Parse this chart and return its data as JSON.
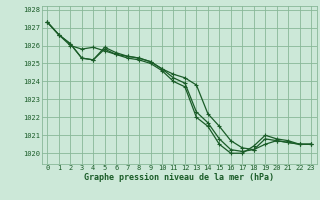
{
  "title": "Graphe pression niveau de la mer (hPa)",
  "background_color": "#cce8d8",
  "grid_color": "#88b898",
  "line_color": "#1a5c28",
  "xlim": [
    -0.5,
    23.5
  ],
  "ylim": [
    1019.4,
    1028.2
  ],
  "yticks": [
    1020,
    1021,
    1022,
    1023,
    1024,
    1025,
    1026,
    1027,
    1028
  ],
  "xticks": [
    0,
    1,
    2,
    3,
    4,
    5,
    6,
    7,
    8,
    9,
    10,
    11,
    12,
    13,
    14,
    15,
    16,
    17,
    18,
    19,
    20,
    21,
    22,
    23
  ],
  "line1": [
    1027.3,
    1026.6,
    1026.0,
    1025.8,
    1025.9,
    1025.7,
    1025.5,
    1025.4,
    1025.3,
    1025.1,
    1024.7,
    1024.4,
    1024.2,
    1023.8,
    1022.2,
    1021.5,
    1020.7,
    1020.3,
    1020.2,
    1020.8,
    1020.7,
    1020.6,
    1020.5,
    1020.5
  ],
  "line2": [
    1027.3,
    1026.6,
    1026.1,
    1025.3,
    1025.2,
    1025.9,
    1025.6,
    1025.4,
    1025.3,
    1025.1,
    1024.7,
    1024.2,
    1023.9,
    1022.3,
    1021.7,
    1020.8,
    1020.2,
    1020.1,
    1020.2,
    1020.5,
    1020.7,
    1020.6,
    1020.5,
    1020.5
  ],
  "line3": [
    1027.3,
    1026.6,
    1026.1,
    1025.3,
    1025.2,
    1025.8,
    1025.5,
    1025.3,
    1025.2,
    1025.0,
    1024.6,
    1024.0,
    1023.7,
    1022.0,
    1021.5,
    1020.5,
    1020.0,
    1020.0,
    1020.4,
    1021.0,
    1020.8,
    1020.7,
    1020.5,
    1020.5
  ],
  "ylabel_fontsize": 5,
  "xlabel_fontsize": 5,
  "title_fontsize": 6
}
